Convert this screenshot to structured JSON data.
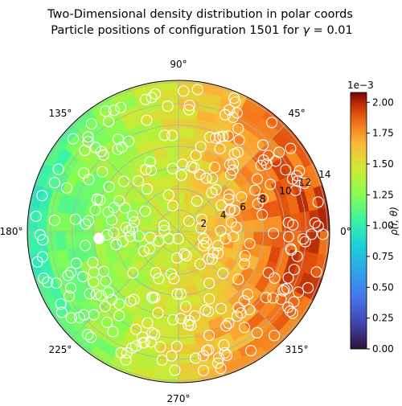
{
  "chart_data": {
    "type": "heatmap",
    "subtype": "polar-density-with-particles",
    "title": "Two-Dimensional density distribution in polar coords",
    "subtitle": "Particle positions of configuration 1501 for γ = 0.01",
    "subtitle_plain": "Particle positions of configuration 1501 for ",
    "subtitle_math_symbol": "γ",
    "subtitle_math_value": " = 0.01",
    "angle_ticks": [
      "0°",
      "45°",
      "90°",
      "135°",
      "180°",
      "225°",
      "270°",
      "315°"
    ],
    "angle_values_deg": [
      0,
      45,
      90,
      135,
      180,
      225,
      270,
      315
    ],
    "radial_ticks": [
      "2",
      "4",
      "6",
      "8",
      "10",
      "12",
      "14"
    ],
    "radial_values": [
      2,
      4,
      6,
      8,
      10,
      12,
      14
    ],
    "rlim": [
      0,
      14.2
    ],
    "colorbar": {
      "label": "ρ(r, θ)",
      "multiplier": "1e−3",
      "ticks": [
        "0.00",
        "0.25",
        "0.50",
        "0.75",
        "1.00",
        "1.25",
        "1.50",
        "1.75",
        "2.00"
      ],
      "tick_values": [
        0.0,
        0.25,
        0.5,
        0.75,
        1.0,
        1.25,
        1.5,
        1.75,
        2.0
      ],
      "vmin": 0.0,
      "vmax": 2.08,
      "colormap": "turbo"
    },
    "density_model": {
      "description": "density increases toward theta=0 side and outward",
      "range_low": 0.85,
      "range_high": 2.05
    },
    "particles": {
      "count_approx": 300,
      "highlighted": {
        "r": 7.5,
        "theta_deg": 185
      },
      "marker_color": "#ffffff"
    },
    "grid": true
  },
  "colors": {
    "grid": "#b0b0b0",
    "particle_edge": "#ffffff",
    "text": "#000000"
  }
}
